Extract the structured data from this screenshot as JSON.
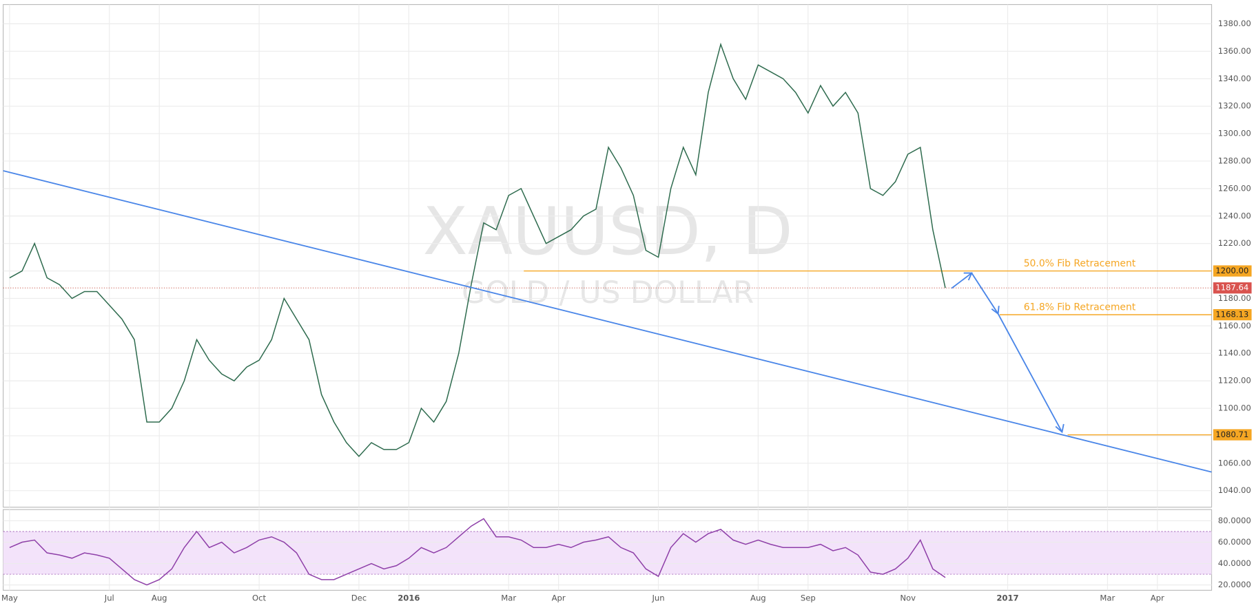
{
  "chart_data": [
    {
      "type": "line",
      "title": "XAUUSD, D",
      "subtitle": "GOLD / US DOLLAR",
      "color": "#2e6b4e",
      "categories": [
        "May",
        null,
        null,
        null,
        null,
        null,
        null,
        null,
        "Jul",
        null,
        null,
        null,
        "Aug",
        null,
        null,
        null,
        null,
        null,
        null,
        null,
        "Oct",
        null,
        null,
        null,
        null,
        null,
        null,
        null,
        "Dec",
        null,
        null,
        null,
        "2016",
        null,
        null,
        null,
        null,
        null,
        null,
        null,
        "Mar",
        null,
        null,
        null,
        "Apr",
        null,
        null,
        null,
        null,
        null,
        null,
        null,
        "Jun",
        null,
        null,
        null,
        null,
        null,
        null,
        null,
        "Aug",
        null,
        null,
        null,
        "Sep",
        null,
        null,
        null,
        null,
        null,
        null,
        null,
        "Nov",
        null,
        null,
        null,
        null,
        null,
        null,
        null,
        "2017",
        null,
        null,
        null,
        null,
        null,
        null,
        null,
        "Mar",
        null,
        null,
        null,
        "Apr",
        null,
        null,
        null,
        null
      ],
      "values": [
        1195,
        1200,
        1220,
        1195,
        1190,
        1180,
        1185,
        1185,
        1175,
        1165,
        1150,
        1090,
        1090,
        1100,
        1120,
        1150,
        1135,
        1125,
        1120,
        1130,
        1135,
        1150,
        1180,
        1165,
        1150,
        1110,
        1090,
        1075,
        1065,
        1075,
        1070,
        1070,
        1075,
        1100,
        1090,
        1105,
        1140,
        1190,
        1235,
        1230,
        1255,
        1260,
        1240,
        1220,
        1225,
        1230,
        1240,
        1245,
        1290,
        1275,
        1255,
        1215,
        1210,
        1260,
        1290,
        1270,
        1330,
        1365,
        1340,
        1325,
        1350,
        1345,
        1340,
        1330,
        1315,
        1335,
        1320,
        1330,
        1315,
        1260,
        1255,
        1265,
        1285,
        1290,
        1230,
        1187.64,
        null,
        null,
        null,
        null,
        null,
        null,
        null,
        null,
        null,
        null,
        null,
        null,
        null,
        null,
        null,
        null,
        null,
        null,
        null,
        null,
        null
      ],
      "last_value_label": "1187.64",
      "ylim": [
        1028,
        1394
      ],
      "yticks": [
        {
          "value": 1040,
          "label": "1040.00"
        },
        {
          "value": 1060,
          "label": "1060.00"
        },
        {
          "value": 1080,
          "label": "1080.00"
        },
        {
          "value": 1100,
          "label": "1100.00"
        },
        {
          "value": 1120,
          "label": "1120.00"
        },
        {
          "value": 1140,
          "label": "1140.00"
        },
        {
          "value": 1160,
          "label": "1160.00"
        },
        {
          "value": 1180,
          "label": "1180.00"
        },
        {
          "value": 1200,
          "label": "1200.00"
        },
        {
          "value": 1220,
          "label": "1220.00"
        },
        {
          "value": 1240,
          "label": "1240.00"
        },
        {
          "value": 1260,
          "label": "1260.00"
        },
        {
          "value": 1280,
          "label": "1280.00"
        },
        {
          "value": 1300,
          "label": "1300.00"
        },
        {
          "value": 1320,
          "label": "1320.00"
        },
        {
          "value": 1340,
          "label": "1340.00"
        },
        {
          "value": 1360,
          "label": "1360.00"
        },
        {
          "value": 1380,
          "label": "1380.00"
        }
      ],
      "grid": true,
      "levels": {
        "names": [
          "50.0% Fib Retracement",
          "61.8% Fib Retracement",
          null
        ],
        "values": [
          1200,
          1168.13,
          1080.71
        ],
        "value_labels": [
          "1200.00",
          "1168.13",
          "1080.71"
        ],
        "color": "#f5a623"
      }
    },
    {
      "type": "line",
      "color": "#8e3fa8",
      "values": [
        55,
        60,
        62,
        50,
        48,
        45,
        50,
        48,
        45,
        35,
        25,
        20,
        25,
        35,
        55,
        70,
        55,
        60,
        50,
        55,
        62,
        65,
        60,
        50,
        30,
        25,
        25,
        30,
        35,
        40,
        35,
        38,
        45,
        55,
        50,
        55,
        65,
        75,
        82,
        65,
        65,
        62,
        55,
        55,
        58,
        55,
        60,
        62,
        65,
        55,
        50,
        35,
        28,
        55,
        68,
        60,
        68,
        72,
        62,
        58,
        62,
        58,
        55,
        55,
        55,
        58,
        52,
        55,
        48,
        32,
        30,
        35,
        45,
        62,
        35,
        27,
        null,
        null,
        null,
        null,
        null,
        null,
        null,
        null,
        null,
        null,
        null,
        null,
        null,
        null,
        null,
        null,
        null,
        null,
        null,
        null,
        null
      ],
      "bands": [
        30,
        70
      ],
      "band_color": "#f3e3fa",
      "ylim": [
        15,
        90.5
      ],
      "yticks": [
        {
          "value": 20,
          "label": "20.0000"
        },
        {
          "value": 40,
          "label": "40.0000"
        },
        {
          "value": 60,
          "label": "60.0000"
        },
        {
          "value": 80,
          "label": "80.0000"
        }
      ],
      "grid": true
    }
  ]
}
